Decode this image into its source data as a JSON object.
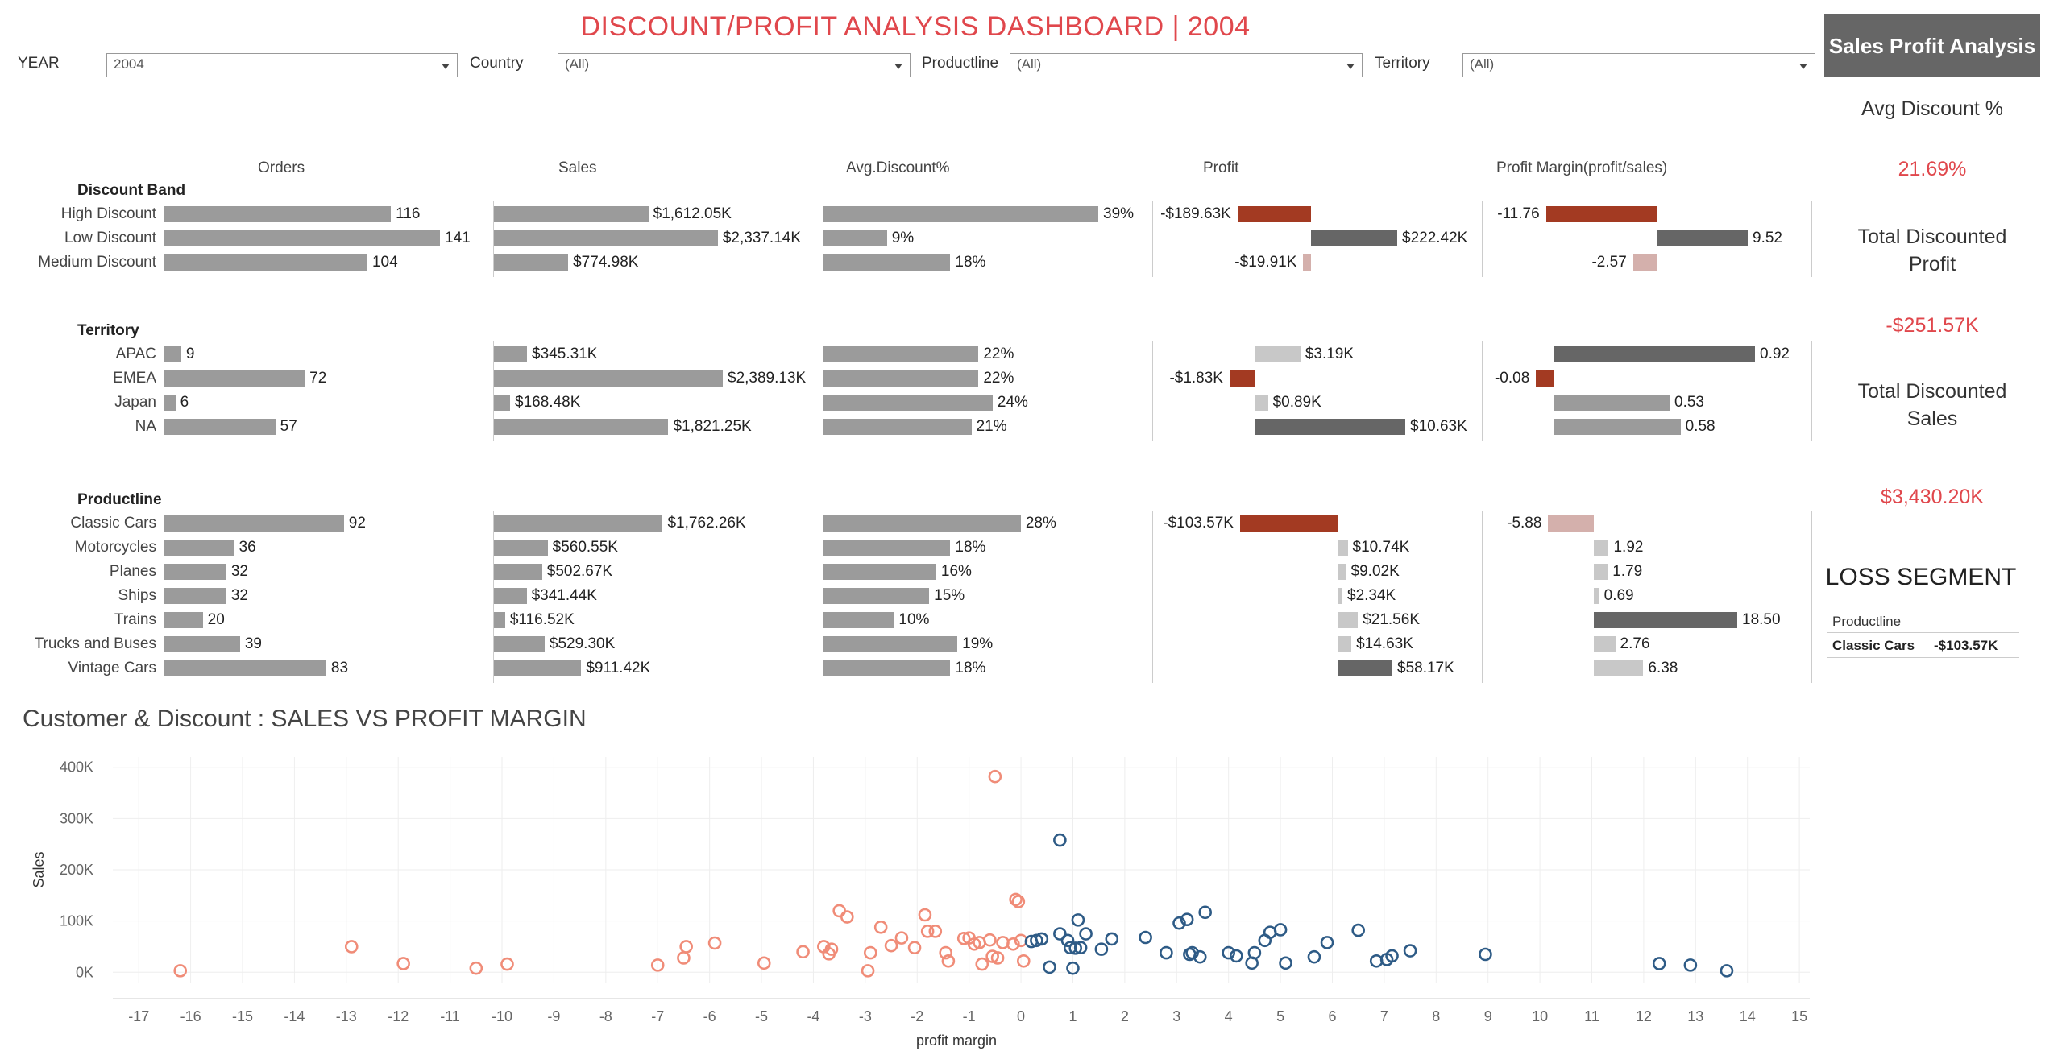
{
  "header": {
    "title": "DISCOUNT/PROFIT ANALYSIS DASHBOARD | 2004",
    "button_label": "Sales Profit Analysis"
  },
  "filters": [
    {
      "label": "YEAR",
      "value": "2004"
    },
    {
      "label": "Country",
      "value": "(All)"
    },
    {
      "label": "Productline",
      "value": "(All)"
    },
    {
      "label": "Territory",
      "value": "(All)"
    }
  ],
  "columns": [
    "Orders",
    "Sales",
    "Avg.Discount%",
    "Profit",
    "Profit Margin(profit/sales)"
  ],
  "sections": [
    {
      "title": "Discount Band",
      "rows": [
        {
          "label": "High Discount",
          "orders": 116,
          "sales": 1612.05,
          "sales_text": "$1,612.05K",
          "discount": 39,
          "discount_text": "39%",
          "profit": -189.63,
          "profit_text": "-$189.63K",
          "margin": -11.76,
          "margin_text": "-11.76"
        },
        {
          "label": "Low Discount",
          "orders": 141,
          "sales": 2337.14,
          "sales_text": "$2,337.14K",
          "discount": 9,
          "discount_text": "9%",
          "profit": 222.42,
          "profit_text": "$222.42K",
          "margin": 9.52,
          "margin_text": "9.52"
        },
        {
          "label": "Medium Discount",
          "orders": 104,
          "sales": 774.98,
          "sales_text": "$774.98K",
          "discount": 18,
          "discount_text": "18%",
          "profit": -19.91,
          "profit_text": "-$19.91K",
          "margin": -2.57,
          "margin_text": "-2.57"
        }
      ]
    },
    {
      "title": "Territory",
      "rows": [
        {
          "label": "APAC",
          "orders": 9,
          "sales": 345.31,
          "sales_text": "$345.31K",
          "discount": 22,
          "discount_text": "22%",
          "profit": 3.19,
          "profit_text": "$3.19K",
          "margin": 0.92,
          "margin_text": "0.92"
        },
        {
          "label": "EMEA",
          "orders": 72,
          "sales": 2389.13,
          "sales_text": "$2,389.13K",
          "discount": 22,
          "discount_text": "22%",
          "profit": -1.83,
          "profit_text": "-$1.83K",
          "margin": -0.08,
          "margin_text": "-0.08"
        },
        {
          "label": "Japan",
          "orders": 6,
          "sales": 168.48,
          "sales_text": "$168.48K",
          "discount": 24,
          "discount_text": "24%",
          "profit": 0.89,
          "profit_text": "$0.89K",
          "margin": 0.53,
          "margin_text": "0.53"
        },
        {
          "label": "NA",
          "orders": 57,
          "sales": 1821.25,
          "sales_text": "$1,821.25K",
          "discount": 21,
          "discount_text": "21%",
          "profit": 10.63,
          "profit_text": "$10.63K",
          "margin": 0.58,
          "margin_text": "0.58"
        }
      ]
    },
    {
      "title": "Productline",
      "rows": [
        {
          "label": "Classic Cars",
          "orders": 92,
          "sales": 1762.26,
          "sales_text": "$1,762.26K",
          "discount": 28,
          "discount_text": "28%",
          "profit": -103.57,
          "profit_text": "-$103.57K",
          "margin": -5.88,
          "margin_text": "-5.88"
        },
        {
          "label": "Motorcycles",
          "orders": 36,
          "sales": 560.55,
          "sales_text": "$560.55K",
          "discount": 18,
          "discount_text": "18%",
          "profit": 10.74,
          "profit_text": "$10.74K",
          "margin": 1.92,
          "margin_text": "1.92"
        },
        {
          "label": "Planes",
          "orders": 32,
          "sales": 502.67,
          "sales_text": "$502.67K",
          "discount": 16,
          "discount_text": "16%",
          "profit": 9.02,
          "profit_text": "$9.02K",
          "margin": 1.79,
          "margin_text": "1.79"
        },
        {
          "label": "Ships",
          "orders": 32,
          "sales": 341.44,
          "sales_text": "$341.44K",
          "discount": 15,
          "discount_text": "15%",
          "profit": 2.34,
          "profit_text": "$2.34K",
          "margin": 0.69,
          "margin_text": "0.69"
        },
        {
          "label": "Trains",
          "orders": 20,
          "sales": 116.52,
          "sales_text": "$116.52K",
          "discount": 10,
          "discount_text": "10%",
          "profit": 21.56,
          "profit_text": "$21.56K",
          "margin": 18.5,
          "margin_text": "18.50"
        },
        {
          "label": "Trucks and Buses",
          "orders": 39,
          "sales": 529.3,
          "sales_text": "$529.30K",
          "discount": 19,
          "discount_text": "19%",
          "profit": 14.63,
          "profit_text": "$14.63K",
          "margin": 2.76,
          "margin_text": "2.76"
        },
        {
          "label": "Vintage Cars",
          "orders": 83,
          "sales": 911.42,
          "sales_text": "$911.42K",
          "discount": 18,
          "discount_text": "18%",
          "profit": 58.17,
          "profit_text": "$58.17K",
          "margin": 6.38,
          "margin_text": "6.38"
        }
      ]
    }
  ],
  "kpis": {
    "avg_discount_label": "Avg Discount %",
    "avg_discount_value": "21.69%",
    "total_profit_label": "Total Discounted Profit",
    "total_profit_value": "-$251.57K",
    "total_sales_label": "Total Discounted Sales",
    "total_sales_value": "$3,430.20K"
  },
  "loss_segment": {
    "title": "LOSS SEGMENT",
    "header": "Productline",
    "name": "Classic Cars",
    "value": "-$103.57K"
  },
  "colors": {
    "bar": "#9b9b9b",
    "dark": "#666666",
    "loss": "#a33a22",
    "light_loss": "#d4b0ac",
    "light": "#c8c8c8",
    "title": "#e0474c",
    "scatter_neg": "#f08c78",
    "scatter_pos": "#2e5b86"
  },
  "scatter": {
    "title": "Customer & Discount : SALES VS PROFIT MARGIN"
  },
  "chart_data": {
    "type": "scatter",
    "title": "",
    "xlabel": "profit margin",
    "ylabel": "Sales",
    "xlim": [
      -17.5,
      15.2
    ],
    "ylim": [
      -20,
      420
    ],
    "xticks": [
      -17,
      -16,
      -15,
      -14,
      -13,
      -12,
      -11,
      -10,
      -9,
      -8,
      -7,
      -6,
      -5,
      -4,
      -3,
      -2,
      -1,
      0,
      1,
      2,
      3,
      4,
      5,
      6,
      7,
      8,
      9,
      10,
      11,
      12,
      13,
      14,
      15
    ],
    "yticks": [
      0,
      100,
      200,
      300,
      400
    ],
    "ytick_labels": [
      "0K",
      "100K",
      "200K",
      "300K",
      "400K"
    ],
    "series": [
      {
        "points": [
          [
            -16.2,
            3
          ],
          [
            -12.9,
            50
          ],
          [
            -11.9,
            17
          ],
          [
            -10.5,
            8
          ],
          [
            -9.9,
            16
          ],
          [
            -7,
            14
          ],
          [
            -6.5,
            28
          ],
          [
            -6.45,
            50
          ],
          [
            -5.9,
            57
          ],
          [
            -4.95,
            18
          ],
          [
            -4.2,
            40
          ],
          [
            -3.8,
            50
          ],
          [
            -3.7,
            36
          ],
          [
            -3.65,
            45
          ],
          [
            -3.5,
            120
          ],
          [
            -3.35,
            108
          ],
          [
            -2.95,
            3
          ],
          [
            -2.9,
            38
          ],
          [
            -2.7,
            88
          ],
          [
            -2.5,
            52
          ],
          [
            -2.3,
            67
          ],
          [
            -2.05,
            48
          ],
          [
            -1.85,
            112
          ],
          [
            -1.8,
            80
          ],
          [
            -1.65,
            80
          ],
          [
            -1.45,
            38
          ],
          [
            -1.4,
            22
          ],
          [
            -1.1,
            66
          ],
          [
            -1,
            67
          ],
          [
            -0.9,
            55
          ],
          [
            -0.8,
            58
          ],
          [
            -0.75,
            16
          ],
          [
            -0.6,
            63
          ],
          [
            -0.55,
            31
          ],
          [
            -0.5,
            382
          ],
          [
            -0.45,
            28
          ],
          [
            -0.35,
            58
          ],
          [
            -0.15,
            55
          ],
          [
            -0.1,
            142
          ],
          [
            -0.05,
            138
          ],
          [
            0,
            62
          ],
          [
            0.05,
            22
          ]
        ]
      },
      {
        "points": [
          [
            0.2,
            60
          ],
          [
            0.3,
            62
          ],
          [
            0.4,
            65
          ],
          [
            0.55,
            10
          ],
          [
            0.75,
            75
          ],
          [
            0.75,
            258
          ],
          [
            0.9,
            62
          ],
          [
            0.95,
            48
          ],
          [
            1,
            8
          ],
          [
            1.05,
            47
          ],
          [
            1.1,
            102
          ],
          [
            1.15,
            48
          ],
          [
            1.25,
            75
          ],
          [
            1.55,
            45
          ],
          [
            1.75,
            65
          ],
          [
            2.4,
            68
          ],
          [
            2.8,
            38
          ],
          [
            3.05,
            96
          ],
          [
            3.2,
            103
          ],
          [
            3.25,
            35
          ],
          [
            3.3,
            38
          ],
          [
            3.45,
            30
          ],
          [
            3.55,
            117
          ],
          [
            4,
            38
          ],
          [
            4.15,
            32
          ],
          [
            4.45,
            18
          ],
          [
            4.5,
            38
          ],
          [
            4.7,
            62
          ],
          [
            4.8,
            78
          ],
          [
            5,
            83
          ],
          [
            5.1,
            18
          ],
          [
            5.65,
            30
          ],
          [
            5.9,
            58
          ],
          [
            6.5,
            82
          ],
          [
            6.85,
            22
          ],
          [
            7.05,
            25
          ],
          [
            7.15,
            32
          ],
          [
            7.5,
            42
          ],
          [
            8.95,
            35
          ],
          [
            12.3,
            17
          ],
          [
            12.9,
            14
          ],
          [
            13.6,
            3
          ]
        ]
      }
    ]
  }
}
